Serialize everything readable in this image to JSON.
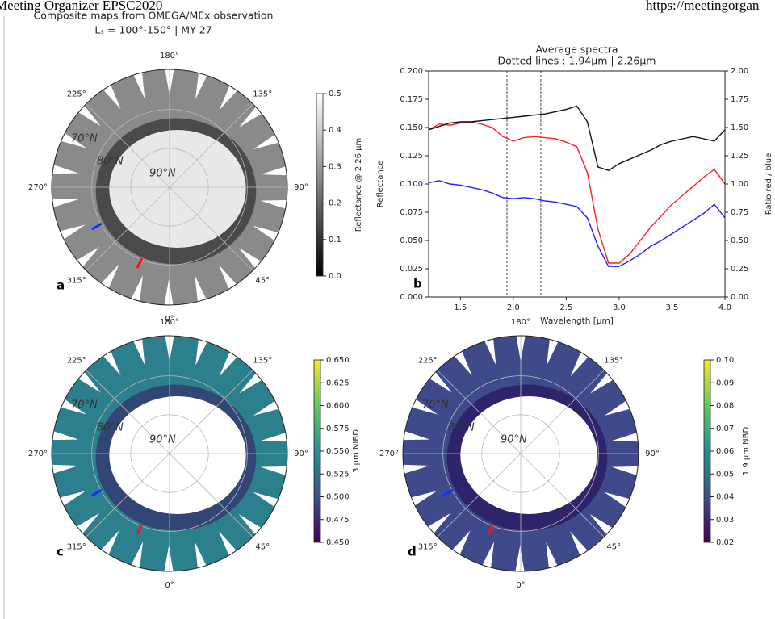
{
  "header": {
    "left": "Meeting Organizer EPSC2020",
    "right": "https://meetingorgan"
  },
  "maps_title": "Composite maps from OMEGA/MEx observation",
  "maps_subtitle": "Lₛ = 100°-150° | MY 27",
  "map_lon_labels": [
    "180°",
    "135°",
    "90°",
    "45°",
    "0°",
    "315°",
    "270°",
    "225°"
  ],
  "map_lat_labels": [
    "70°N",
    "80°N",
    "90°N"
  ],
  "maps": [
    {
      "panel": "a",
      "colorbar_label": "Reflectance @ 2.26 µm",
      "cmap": [
        "#000000",
        "#ffffff"
      ],
      "clim": [
        0,
        0.5
      ],
      "cticks": [
        {
          "value": 0,
          "label": "0.0"
        },
        0.1,
        0.2,
        0.3,
        0.4,
        0.5
      ]
    },
    {
      "panel": "c",
      "colorbar_label": "3 µm NIBD",
      "cmap": [
        "#440154",
        "#3b528b",
        "#21918c",
        "#5ec962",
        "#fde725"
      ],
      "clim": [
        0.45,
        0.65
      ],
      "cticks": [
        {
          "value": 0.45,
          "label": "0.450"
        },
        0.475,
        {
          "value": 0.5,
          "label": "0.500"
        },
        0.525,
        {
          "value": 0.55,
          "label": "0.550"
        },
        0.575,
        {
          "value": 0.6,
          "label": "0.600"
        },
        0.625,
        {
          "value": 0.65,
          "label": "0.650"
        }
      ]
    },
    {
      "panel": "d",
      "colorbar_label": "1.9 µm NBD",
      "cmap": [
        "#440154",
        "#3b528b",
        "#21918c",
        "#5ec962",
        "#fde725"
      ],
      "clim": [
        0.02,
        0.1
      ],
      "cticks": [
        0.02,
        0.03,
        0.04,
        0.05,
        0.06,
        0.07,
        0.08,
        0.09,
        {
          "value": 0.1,
          "label": "0.10"
        }
      ]
    }
  ],
  "chart_data": {
    "type": "line",
    "panel": "b",
    "title": "Average spectra",
    "subtitle": "Dotted lines : 1.94µm | 2.26µm",
    "xlabel": "Wavelength [µm]",
    "ylabel": "Reflectance",
    "y2label": "Ratio red / blue",
    "vlines": [
      1.94,
      2.26
    ],
    "x": [
      1.2,
      1.3,
      1.4,
      1.5,
      1.6,
      1.7,
      1.8,
      1.9,
      2.0,
      2.1,
      2.2,
      2.3,
      2.4,
      2.5,
      2.6,
      2.7,
      2.8,
      2.9,
      3.0,
      3.1,
      3.2,
      3.3,
      3.4,
      3.5,
      3.6,
      3.7,
      3.8,
      3.9,
      4.0
    ],
    "series": [
      {
        "color": "#ff2020",
        "values": [
          0.148,
          0.153,
          0.152,
          0.154,
          0.155,
          0.153,
          0.15,
          0.142,
          0.138,
          0.141,
          0.142,
          0.141,
          0.14,
          0.137,
          0.133,
          0.11,
          0.06,
          0.03,
          0.03,
          0.038,
          0.05,
          0.062,
          0.072,
          0.082,
          0.09,
          0.098,
          0.106,
          0.113,
          0.1
        ]
      },
      {
        "color": "#2020ff",
        "values": [
          0.101,
          0.103,
          0.1,
          0.099,
          0.097,
          0.095,
          0.092,
          0.088,
          0.087,
          0.088,
          0.087,
          0.085,
          0.084,
          0.082,
          0.08,
          0.07,
          0.045,
          0.027,
          0.027,
          0.032,
          0.038,
          0.045,
          0.05,
          0.056,
          0.062,
          0.068,
          0.074,
          0.082,
          0.07
        ]
      },
      {
        "color": "#111111",
        "axis": "y2",
        "values": [
          1.48,
          1.51,
          1.54,
          1.55,
          1.55,
          1.56,
          1.57,
          1.58,
          1.59,
          1.6,
          1.61,
          1.62,
          1.64,
          1.66,
          1.69,
          1.55,
          1.15,
          1.12,
          1.18,
          1.22,
          1.26,
          1.3,
          1.35,
          1.38,
          1.4,
          1.42,
          1.4,
          1.38,
          1.48
        ]
      }
    ],
    "xlim": [
      1.2,
      4.0
    ],
    "xticks": [
      1.5,
      {
        "value": 2,
        "label": "2.0"
      },
      2.5,
      {
        "value": 3,
        "label": "3.0"
      },
      3.5,
      {
        "value": 4,
        "label": "4.0"
      }
    ],
    "ylim": [
      0,
      0.2
    ],
    "yticks": [
      {
        "value": 0,
        "label": "0.000"
      },
      0.025,
      {
        "value": 0.05,
        "label": "0.050"
      },
      0.075,
      {
        "value": 0.1,
        "label": "0.100"
      },
      0.125,
      {
        "value": 0.15,
        "label": "0.150"
      },
      0.175,
      {
        "value": 0.2,
        "label": "0.200"
      }
    ],
    "y2lim": [
      0,
      2
    ],
    "y2ticks": [
      {
        "value": 0,
        "label": "0.00"
      },
      0.25,
      {
        "value": 0.5,
        "label": "0.50"
      },
      0.75,
      {
        "value": 1,
        "label": "1.00"
      },
      1.25,
      {
        "value": 1.5,
        "label": "1.50"
      },
      1.75,
      {
        "value": 2,
        "label": "2.00"
      }
    ]
  }
}
